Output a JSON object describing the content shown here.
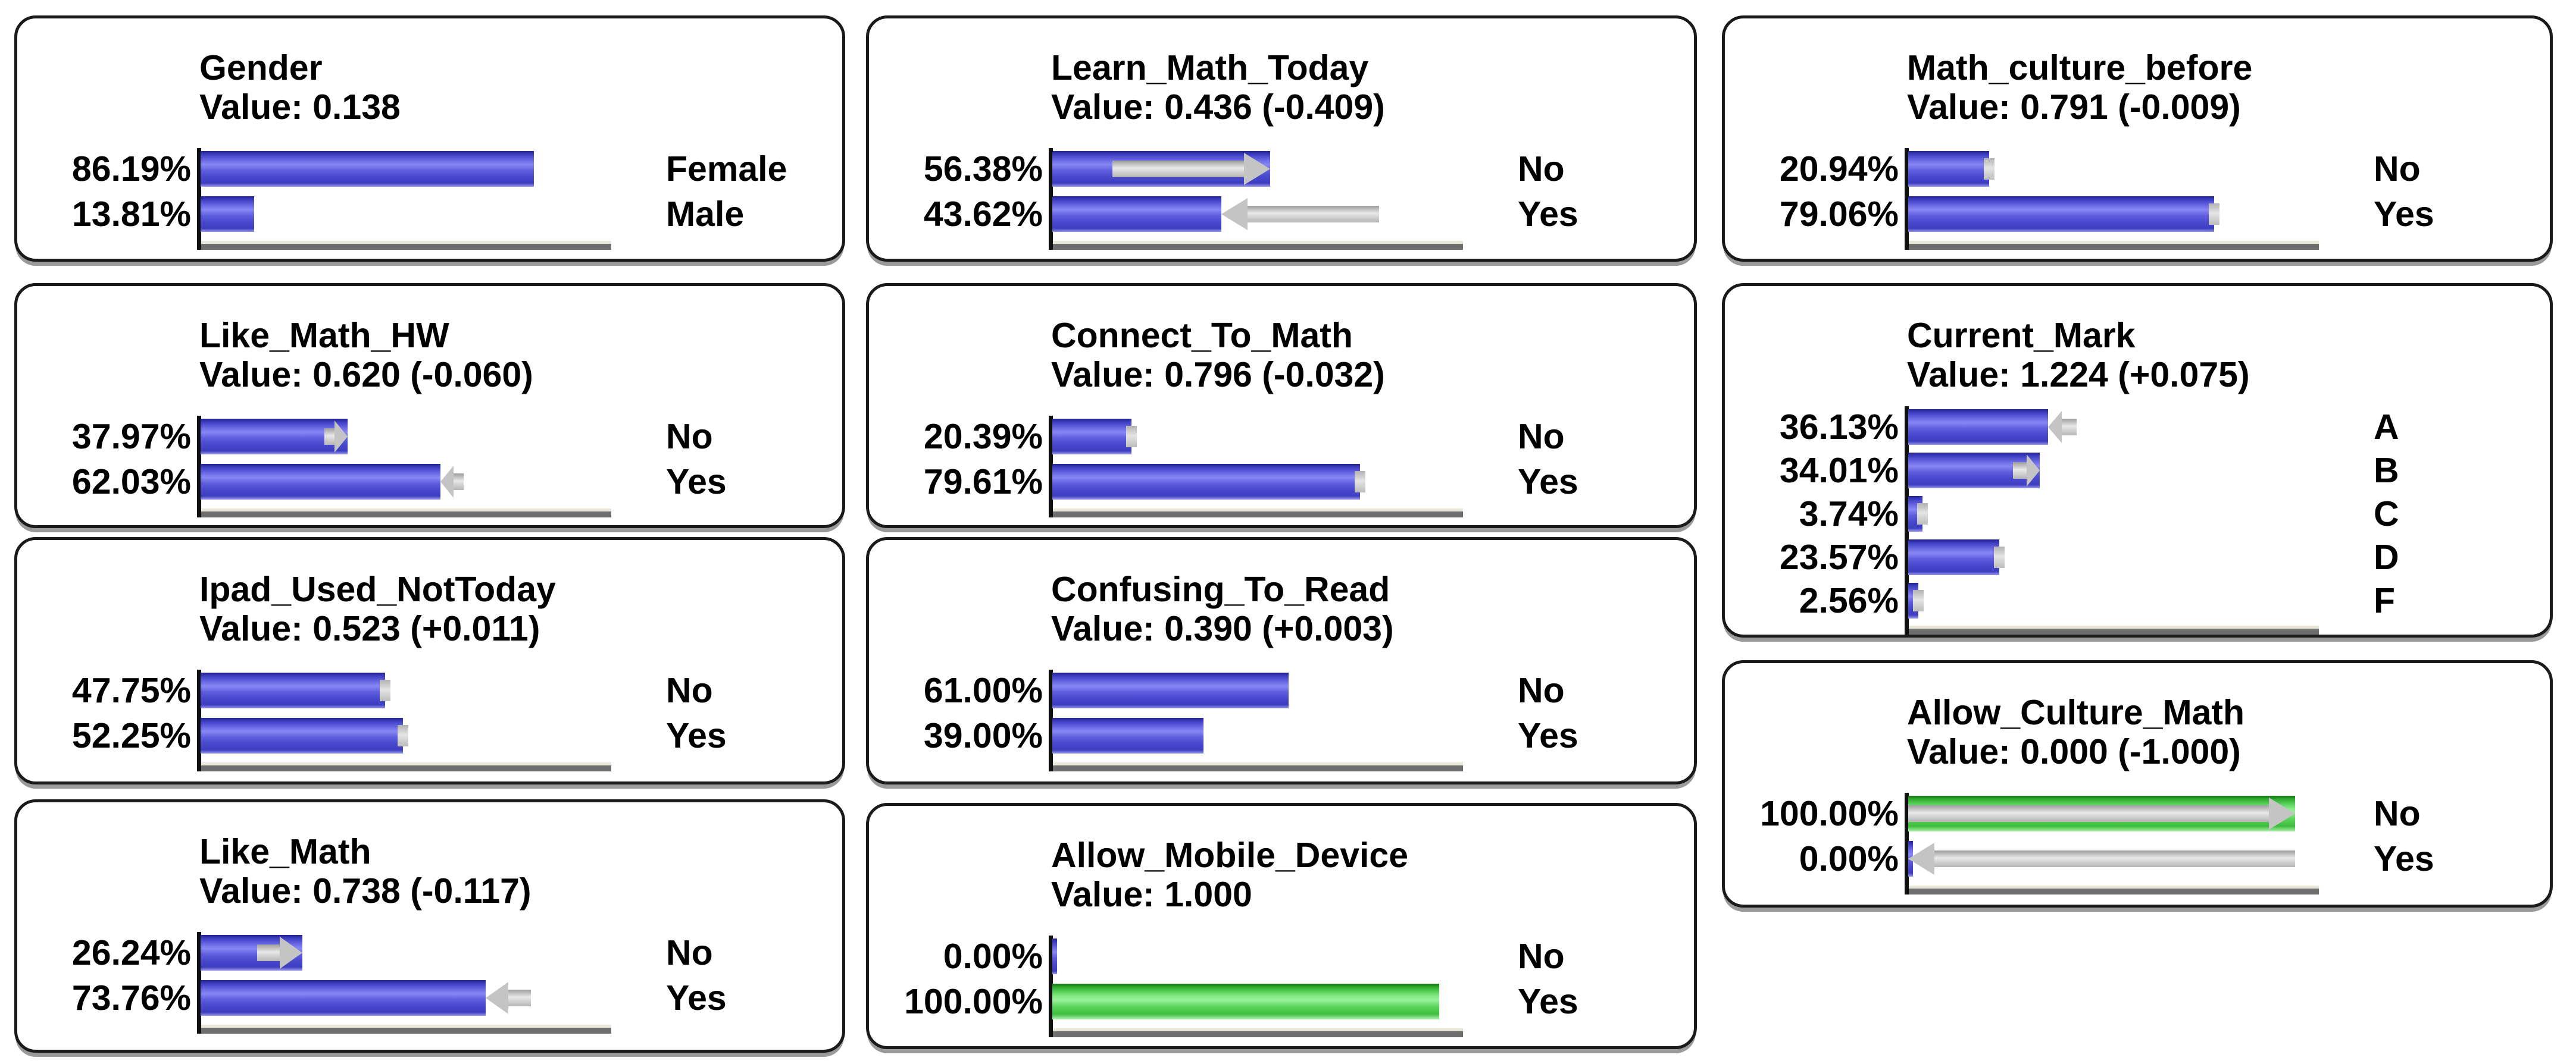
{
  "colors": {
    "background": "#ffffff",
    "text": "#000000",
    "panel_border": "#1a1a1a",
    "panel_shadow": "#9a9a9a",
    "bar_blue": "#4646cc",
    "bar_green": "#4ec84e",
    "change_arrow_gray": "#c4c4c4",
    "axis_black": "#101010",
    "baseline_gray": "#6e6e6e"
  },
  "chart_data": [
    {
      "type": "bar",
      "orientation": "horizontal",
      "xlim": [
        0,
        100
      ],
      "unit": "%",
      "title": "Gender",
      "value_label": "Value: 0.138",
      "value": 0.138,
      "delta": null,
      "rows": [
        {
          "pct_label": "86.19%",
          "pct": 86.19,
          "state": "Female",
          "color": "blue",
          "arrow": null
        },
        {
          "pct_label": "13.81%",
          "pct": 13.81,
          "state": "Male",
          "color": "blue",
          "arrow": null
        }
      ]
    },
    {
      "type": "bar",
      "orientation": "horizontal",
      "xlim": [
        0,
        100
      ],
      "unit": "%",
      "title": "Learn_Math_Today",
      "value_label": "Value: 0.436 (-0.409)",
      "value": 0.436,
      "delta": -0.409,
      "rows": [
        {
          "pct_label": "56.38%",
          "pct": 56.38,
          "state": "No",
          "color": "blue",
          "arrow": {
            "dir": "right",
            "from": 15.5,
            "to": 56.38
          }
        },
        {
          "pct_label": "43.62%",
          "pct": 43.62,
          "state": "Yes",
          "color": "blue",
          "arrow": {
            "dir": "left",
            "from": 84.5,
            "to": 43.62
          }
        }
      ]
    },
    {
      "type": "bar",
      "orientation": "horizontal",
      "xlim": [
        0,
        100
      ],
      "unit": "%",
      "title": "Math_culture_before",
      "value_label": "Value: 0.791 (-0.009)",
      "value": 0.791,
      "delta": -0.009,
      "rows": [
        {
          "pct_label": "20.94%",
          "pct": 20.94,
          "state": "No",
          "color": "blue",
          "arrow": {
            "dir": "right",
            "from": 20.04,
            "to": 20.94
          }
        },
        {
          "pct_label": "79.06%",
          "pct": 79.06,
          "state": "Yes",
          "color": "blue",
          "arrow": {
            "dir": "left",
            "from": 79.96,
            "to": 79.06
          }
        }
      ]
    },
    {
      "type": "bar",
      "orientation": "horizontal",
      "xlim": [
        0,
        100
      ],
      "unit": "%",
      "title": "Like_Math_HW",
      "value_label": "Value: 0.620 (-0.060)",
      "value": 0.62,
      "delta": -0.06,
      "rows": [
        {
          "pct_label": "37.97%",
          "pct": 37.97,
          "state": "No",
          "color": "blue",
          "arrow": {
            "dir": "right",
            "from": 31.97,
            "to": 37.97
          }
        },
        {
          "pct_label": "62.03%",
          "pct": 62.03,
          "state": "Yes",
          "color": "blue",
          "arrow": {
            "dir": "left",
            "from": 68.03,
            "to": 62.03
          }
        }
      ]
    },
    {
      "type": "bar",
      "orientation": "horizontal",
      "xlim": [
        0,
        100
      ],
      "unit": "%",
      "title": "Connect_To_Math",
      "value_label": "Value: 0.796 (-0.032)",
      "value": 0.796,
      "delta": -0.032,
      "rows": [
        {
          "pct_label": "20.39%",
          "pct": 20.39,
          "state": "No",
          "color": "blue",
          "arrow": {
            "dir": "right",
            "from": 17.19,
            "to": 20.39
          }
        },
        {
          "pct_label": "79.61%",
          "pct": 79.61,
          "state": "Yes",
          "color": "blue",
          "arrow": {
            "dir": "left",
            "from": 82.81,
            "to": 79.61
          }
        }
      ]
    },
    {
      "type": "bar",
      "orientation": "horizontal",
      "xlim": [
        0,
        100
      ],
      "unit": "%",
      "title": "Current_Mark",
      "value_label": "Value: 1.224 (+0.075)",
      "value": 1.224,
      "delta": 0.075,
      "rows": [
        {
          "pct_label": "36.13%",
          "pct": 36.13,
          "state": "A",
          "color": "blue",
          "arrow": {
            "dir": "left",
            "from": 43.5,
            "to": 36.13
          }
        },
        {
          "pct_label": "34.01%",
          "pct": 34.01,
          "state": "B",
          "color": "blue",
          "arrow": {
            "dir": "right",
            "from": 27.0,
            "to": 34.01
          }
        },
        {
          "pct_label": "3.74%",
          "pct": 3.74,
          "state": "C",
          "color": "blue",
          "arrow": {
            "dir": "left",
            "from": 5.5,
            "to": 3.74
          }
        },
        {
          "pct_label": "23.57%",
          "pct": 23.57,
          "state": "D",
          "color": "blue",
          "arrow": {
            "dir": "left",
            "from": 26.0,
            "to": 23.57
          }
        },
        {
          "pct_label": "2.56%",
          "pct": 2.56,
          "state": "F",
          "color": "blue",
          "arrow": {
            "dir": "left",
            "from": 3.8,
            "to": 2.56
          }
        }
      ]
    },
    {
      "type": "bar",
      "orientation": "horizontal",
      "xlim": [
        0,
        100
      ],
      "unit": "%",
      "title": "Ipad_Used_NotToday",
      "value_label": "Value: 0.523 (+0.011)",
      "value": 0.523,
      "delta": 0.011,
      "rows": [
        {
          "pct_label": "47.75%",
          "pct": 47.75,
          "state": "No",
          "color": "blue",
          "arrow": {
            "dir": "left",
            "from": 48.85,
            "to": 47.75
          }
        },
        {
          "pct_label": "52.25%",
          "pct": 52.25,
          "state": "Yes",
          "color": "blue",
          "arrow": {
            "dir": "right",
            "from": 51.15,
            "to": 52.25
          }
        }
      ]
    },
    {
      "type": "bar",
      "orientation": "horizontal",
      "xlim": [
        0,
        100
      ],
      "unit": "%",
      "title": "Confusing_To_Read",
      "value_label": "Value: 0.390 (+0.003)",
      "value": 0.39,
      "delta": 0.003,
      "rows": [
        {
          "pct_label": "61.00%",
          "pct": 61.0,
          "state": "No",
          "color": "blue",
          "arrow": null
        },
        {
          "pct_label": "39.00%",
          "pct": 39.0,
          "state": "Yes",
          "color": "blue",
          "arrow": null
        }
      ]
    },
    {
      "type": "bar",
      "orientation": "horizontal",
      "xlim": [
        0,
        100
      ],
      "unit": "%",
      "title": "Allow_Culture_Math",
      "value_label": "Value: 0.000 (-1.000)",
      "value": 0.0,
      "delta": -1.0,
      "rows": [
        {
          "pct_label": "100.00%",
          "pct": 100.0,
          "state": "No",
          "color": "green",
          "arrow": {
            "dir": "right",
            "from": 0.0,
            "to": 100.0
          }
        },
        {
          "pct_label": "0.00%",
          "pct": 0.0,
          "state": "Yes",
          "color": "blue",
          "arrow": {
            "dir": "left",
            "from": 100.0,
            "to": 0.0
          }
        }
      ]
    },
    {
      "type": "bar",
      "orientation": "horizontal",
      "xlim": [
        0,
        100
      ],
      "unit": "%",
      "title": "Like_Math",
      "value_label": "Value: 0.738 (-0.117)",
      "value": 0.738,
      "delta": -0.117,
      "rows": [
        {
          "pct_label": "26.24%",
          "pct": 26.24,
          "state": "No",
          "color": "blue",
          "arrow": {
            "dir": "right",
            "from": 14.54,
            "to": 26.24
          }
        },
        {
          "pct_label": "73.76%",
          "pct": 73.76,
          "state": "Yes",
          "color": "blue",
          "arrow": {
            "dir": "left",
            "from": 85.46,
            "to": 73.76
          }
        }
      ]
    },
    {
      "type": "bar",
      "orientation": "horizontal",
      "xlim": [
        0,
        100
      ],
      "unit": "%",
      "title": "Allow_Mobile_Device",
      "value_label": "Value: 1.000",
      "value": 1.0,
      "delta": null,
      "rows": [
        {
          "pct_label": "0.00%",
          "pct": 0.0,
          "state": "No",
          "color": "blue",
          "arrow": null
        },
        {
          "pct_label": "100.00%",
          "pct": 100.0,
          "state": "Yes",
          "color": "green",
          "arrow": null
        }
      ]
    }
  ]
}
